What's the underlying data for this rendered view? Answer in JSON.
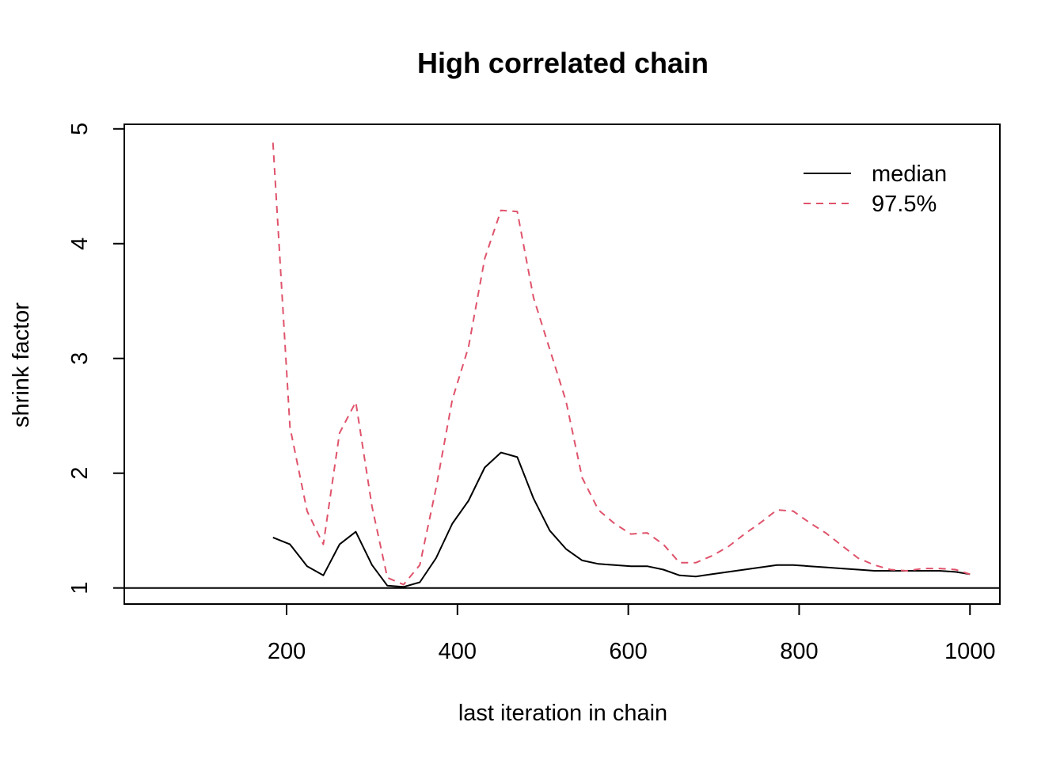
{
  "chart_data": {
    "type": "line",
    "title": "High correlated chain",
    "xlabel": "last iteration in chain",
    "ylabel": "shrink factor",
    "xlim": [
      10,
      1035
    ],
    "ylim": [
      0.86,
      5.04
    ],
    "xticks": [
      200,
      400,
      600,
      800,
      1000
    ],
    "xtick_labels": [
      "200",
      "400",
      "600",
      "800",
      "1000"
    ],
    "yticks": [
      1,
      2,
      3,
      4,
      5
    ],
    "ytick_labels": [
      "1",
      "2",
      "3",
      "4",
      "5"
    ],
    "reference_line": 1,
    "grid": false,
    "legend_position": "top-right",
    "x": [
      184,
      204,
      224,
      243,
      262,
      281,
      300,
      318,
      337,
      356,
      375,
      394,
      413,
      432,
      451,
      470,
      489,
      508,
      527,
      546,
      565,
      584,
      603,
      622,
      641,
      660,
      679,
      698,
      717,
      736,
      755,
      774,
      793,
      812,
      831,
      850,
      869,
      888,
      907,
      926,
      945,
      964,
      983,
      1000
    ],
    "series": [
      {
        "name": "median",
        "color": "#000000",
        "dash": "solid",
        "values": [
          1.44,
          1.38,
          1.19,
          1.11,
          1.38,
          1.49,
          1.2,
          1.02,
          1.01,
          1.05,
          1.26,
          1.56,
          1.76,
          2.05,
          2.18,
          2.14,
          1.78,
          1.5,
          1.34,
          1.24,
          1.21,
          1.2,
          1.19,
          1.19,
          1.16,
          1.11,
          1.1,
          1.12,
          1.14,
          1.16,
          1.18,
          1.2,
          1.2,
          1.19,
          1.18,
          1.17,
          1.16,
          1.15,
          1.15,
          1.15,
          1.15,
          1.15,
          1.14,
          1.12
        ]
      },
      {
        "name": "97.5%",
        "color": "#DF536B",
        "dash": "dashed",
        "values": [
          4.88,
          2.4,
          1.67,
          1.38,
          2.35,
          2.62,
          1.71,
          1.09,
          1.03,
          1.2,
          1.87,
          2.64,
          3.1,
          3.87,
          4.29,
          4.28,
          3.53,
          3.08,
          2.63,
          1.96,
          1.68,
          1.56,
          1.47,
          1.48,
          1.38,
          1.22,
          1.22,
          1.28,
          1.36,
          1.47,
          1.57,
          1.68,
          1.67,
          1.57,
          1.48,
          1.37,
          1.26,
          1.2,
          1.16,
          1.15,
          1.17,
          1.17,
          1.16,
          1.12
        ]
      }
    ]
  }
}
